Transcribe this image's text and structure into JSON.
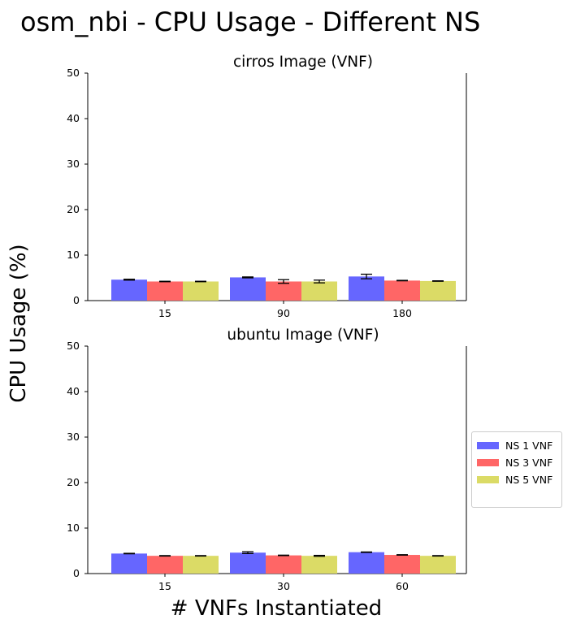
{
  "figure": {
    "title": "osm_nbi - CPU Usage - Different NS",
    "ylabel": "CPU Usage (%)",
    "xlabel": "# VNFs Instantiated"
  },
  "legend": [
    {
      "name": "NS 1 VNF",
      "color": "#6666ff"
    },
    {
      "name": "NS 3 VNF",
      "color": "#ff6666"
    },
    {
      "name": "NS 5 VNF",
      "color": "#dbdb66"
    }
  ],
  "chart_data": [
    {
      "type": "bar",
      "title": "cirros Image (VNF)",
      "categories": [
        "15",
        "90",
        "180"
      ],
      "ylim": [
        0,
        50
      ],
      "yticks": [
        0,
        10,
        20,
        30,
        40,
        50
      ],
      "grid": false,
      "legend_placement": "right",
      "series": [
        {
          "name": "NS 1 VNF",
          "values": [
            4.6,
            5.1,
            5.3
          ],
          "errors": [
            0.1,
            0.1,
            0.5
          ]
        },
        {
          "name": "NS 3 VNF",
          "values": [
            4.2,
            4.2,
            4.4
          ],
          "errors": [
            0.05,
            0.4,
            0.05
          ]
        },
        {
          "name": "NS 5 VNF",
          "values": [
            4.2,
            4.2,
            4.3
          ],
          "errors": [
            0.05,
            0.3,
            0.05
          ]
        }
      ]
    },
    {
      "type": "bar",
      "title": "ubuntu Image (VNF)",
      "categories": [
        "15",
        "30",
        "60"
      ],
      "ylim": [
        0,
        50
      ],
      "yticks": [
        0,
        10,
        20,
        30,
        40,
        50
      ],
      "grid": false,
      "legend_placement": "right",
      "series": [
        {
          "name": "NS 1 VNF",
          "values": [
            4.4,
            4.6,
            4.7
          ],
          "errors": [
            0.05,
            0.2,
            0.05
          ]
        },
        {
          "name": "NS 3 VNF",
          "values": [
            3.9,
            4.0,
            4.1
          ],
          "errors": [
            0.05,
            0.05,
            0.05
          ]
        },
        {
          "name": "NS 5 VNF",
          "values": [
            3.9,
            3.9,
            3.9
          ],
          "errors": [
            0.05,
            0.1,
            0.05
          ]
        }
      ]
    }
  ]
}
